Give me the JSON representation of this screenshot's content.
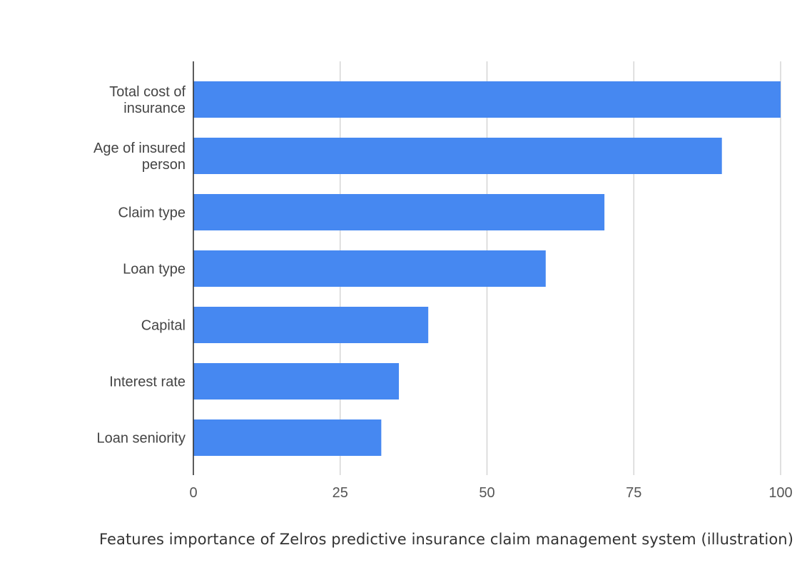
{
  "chart_data": {
    "type": "bar",
    "orientation": "horizontal",
    "categories": [
      "Total cost of insurance",
      "Age of insured person",
      "Claim type",
      "Loan type",
      "Capital",
      "Interest rate",
      "Loan seniority"
    ],
    "category_lines": [
      [
        "Total cost of",
        "insurance"
      ],
      [
        "Age of insured",
        "person"
      ],
      [
        "Claim type"
      ],
      [
        "Loan type"
      ],
      [
        "Capital"
      ],
      [
        "Interest rate"
      ],
      [
        "Loan seniority"
      ]
    ],
    "values": [
      100,
      90,
      70,
      60,
      40,
      35,
      32
    ],
    "xlim": [
      0,
      100
    ],
    "x_ticks": [
      "0",
      "25",
      "50",
      "75",
      "100"
    ],
    "x_tick_values": [
      0,
      25,
      50,
      75,
      100
    ],
    "grid": "vertical",
    "bar_color": "#4688f1",
    "title": "",
    "xlabel": "",
    "ylabel": ""
  },
  "caption": "Features importance of Zelros predictive insurance claim management system (illustration)"
}
